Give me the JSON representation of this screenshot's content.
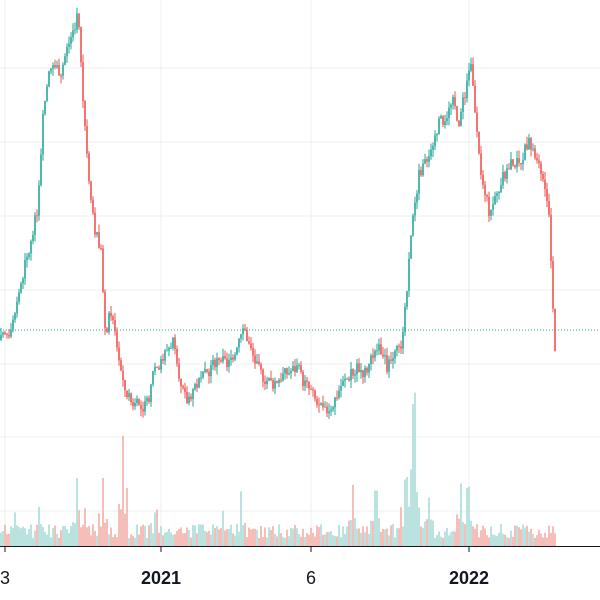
{
  "colors": {
    "up": "#26a69a",
    "down": "#ef5350",
    "up_volume": "#b2dfdb",
    "down_volume": "#f5b7b1",
    "grid": "#eceff3",
    "axis_line": "#131722",
    "price_line": "#26a69a",
    "background": "#ffffff"
  },
  "chart_data": {
    "type": "candlestick",
    "title": "",
    "grid": true,
    "price_line": {
      "style": "dotted"
    },
    "x_tick_labels": [
      {
        "label": "3",
        "bold": false
      },
      {
        "label": "2021",
        "bold": true
      },
      {
        "label": "6",
        "bold": false
      },
      {
        "label": "2022",
        "bold": true
      }
    ],
    "price_path": [
      {
        "t": 0,
        "v": 0.32
      },
      {
        "t": 8,
        "v": 0.36
      },
      {
        "t": 16,
        "v": 0.5
      },
      {
        "t": 22,
        "v": 0.62
      },
      {
        "t": 30,
        "v": 0.75
      },
      {
        "t": 36,
        "v": 0.9
      },
      {
        "t": 42,
        "v": 1.3
      },
      {
        "t": 46,
        "v": 1.48
      },
      {
        "t": 52,
        "v": 1.55
      },
      {
        "t": 60,
        "v": 1.52
      },
      {
        "t": 66,
        "v": 1.62
      },
      {
        "t": 72,
        "v": 1.7
      },
      {
        "t": 77,
        "v": 1.78
      },
      {
        "t": 82,
        "v": 1.4
      },
      {
        "t": 88,
        "v": 1.05
      },
      {
        "t": 94,
        "v": 0.82
      },
      {
        "t": 100,
        "v": 0.7
      },
      {
        "t": 104,
        "v": 0.35
      },
      {
        "t": 110,
        "v": 0.45
      },
      {
        "t": 116,
        "v": 0.3
      },
      {
        "t": 122,
        "v": 0.12
      },
      {
        "t": 130,
        "v": 0.05
      },
      {
        "t": 140,
        "v": 0.02
      },
      {
        "t": 148,
        "v": 0.04
      },
      {
        "t": 152,
        "v": 0.2
      },
      {
        "t": 160,
        "v": 0.22
      },
      {
        "t": 166,
        "v": 0.28
      },
      {
        "t": 172,
        "v": 0.32
      },
      {
        "t": 178,
        "v": 0.12
      },
      {
        "t": 186,
        "v": 0.05
      },
      {
        "t": 194,
        "v": 0.12
      },
      {
        "t": 202,
        "v": 0.15
      },
      {
        "t": 210,
        "v": 0.2
      },
      {
        "t": 218,
        "v": 0.25
      },
      {
        "t": 226,
        "v": 0.2
      },
      {
        "t": 234,
        "v": 0.28
      },
      {
        "t": 242,
        "v": 0.4
      },
      {
        "t": 248,
        "v": 0.3
      },
      {
        "t": 256,
        "v": 0.2
      },
      {
        "t": 264,
        "v": 0.15
      },
      {
        "t": 272,
        "v": 0.13
      },
      {
        "t": 280,
        "v": 0.16
      },
      {
        "t": 288,
        "v": 0.18
      },
      {
        "t": 296,
        "v": 0.2
      },
      {
        "t": 302,
        "v": 0.14
      },
      {
        "t": 310,
        "v": 0.09
      },
      {
        "t": 318,
        "v": 0.02
      },
      {
        "t": 324,
        "v": 0.0
      },
      {
        "t": 332,
        "v": 0.04
      },
      {
        "t": 340,
        "v": 0.12
      },
      {
        "t": 348,
        "v": 0.16
      },
      {
        "t": 356,
        "v": 0.2
      },
      {
        "t": 364,
        "v": 0.18
      },
      {
        "t": 372,
        "v": 0.24
      },
      {
        "t": 378,
        "v": 0.3
      },
      {
        "t": 386,
        "v": 0.2
      },
      {
        "t": 394,
        "v": 0.25
      },
      {
        "t": 400,
        "v": 0.3
      },
      {
        "t": 406,
        "v": 0.55
      },
      {
        "t": 412,
        "v": 0.9
      },
      {
        "t": 418,
        "v": 1.05
      },
      {
        "t": 424,
        "v": 1.12
      },
      {
        "t": 430,
        "v": 1.18
      },
      {
        "t": 438,
        "v": 1.28
      },
      {
        "t": 446,
        "v": 1.33
      },
      {
        "t": 452,
        "v": 1.38
      },
      {
        "t": 458,
        "v": 1.3
      },
      {
        "t": 464,
        "v": 1.42
      },
      {
        "t": 470,
        "v": 1.55
      },
      {
        "t": 476,
        "v": 1.22
      },
      {
        "t": 482,
        "v": 1.0
      },
      {
        "t": 488,
        "v": 0.9
      },
      {
        "t": 494,
        "v": 0.95
      },
      {
        "t": 500,
        "v": 1.02
      },
      {
        "t": 506,
        "v": 1.08
      },
      {
        "t": 512,
        "v": 1.12
      },
      {
        "t": 518,
        "v": 1.1
      },
      {
        "t": 526,
        "v": 1.2
      },
      {
        "t": 532,
        "v": 1.18
      },
      {
        "t": 538,
        "v": 1.08
      },
      {
        "t": 544,
        "v": 1.0
      },
      {
        "t": 548,
        "v": 0.85
      },
      {
        "t": 551,
        "v": 0.6
      },
      {
        "t": 553,
        "v": 0.35
      },
      {
        "t": 555,
        "v": 0.22
      }
    ],
    "volume_spikes": [
      {
        "t": 14,
        "v": 0.45
      },
      {
        "t": 38,
        "v": 0.55
      },
      {
        "t": 76,
        "v": 0.95
      },
      {
        "t": 84,
        "v": 0.55
      },
      {
        "t": 102,
        "v": 0.95
      },
      {
        "t": 122,
        "v": 1.55
      },
      {
        "t": 155,
        "v": 0.6
      },
      {
        "t": 222,
        "v": 0.5
      },
      {
        "t": 240,
        "v": 0.85
      },
      {
        "t": 352,
        "v": 0.95
      },
      {
        "t": 375,
        "v": 0.75
      },
      {
        "t": 405,
        "v": 1.05
      },
      {
        "t": 413,
        "v": 2.1
      },
      {
        "t": 428,
        "v": 0.75
      },
      {
        "t": 460,
        "v": 0.9
      },
      {
        "t": 467,
        "v": 0.85
      }
    ]
  }
}
